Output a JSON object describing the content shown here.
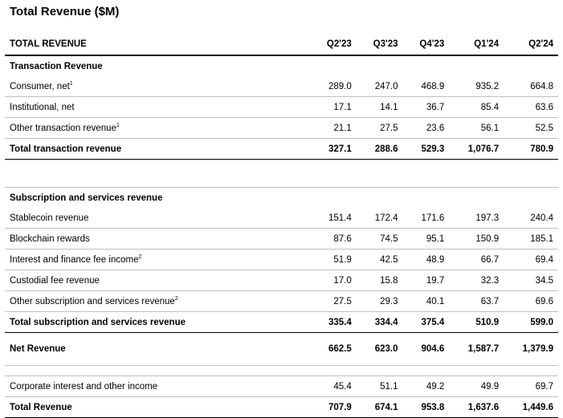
{
  "title": "Total Revenue ($M)",
  "header": {
    "label": "TOTAL REVENUE",
    "periods": [
      "Q2'23",
      "Q3'23",
      "Q4'23",
      "Q1'24",
      "Q2'24"
    ]
  },
  "transaction": {
    "section_label": "Transaction Revenue",
    "rows": [
      {
        "label": "Consumer, net",
        "note": "1",
        "values": [
          "289.0",
          "247.0",
          "468.9",
          "935.2",
          "664.8"
        ]
      },
      {
        "label": "Institutional, net",
        "note": "",
        "values": [
          "17.1",
          "14.1",
          "36.7",
          "85.4",
          "63.6"
        ]
      },
      {
        "label": "Other transaction revenue",
        "note": "1",
        "values": [
          "21.1",
          "27.5",
          "23.6",
          "56.1",
          "52.5"
        ]
      }
    ],
    "total": {
      "label": "Total transaction revenue",
      "values": [
        "327.1",
        "288.6",
        "529.3",
        "1,076.7",
        "780.9"
      ]
    }
  },
  "subscription": {
    "section_label": "Subscription and services revenue",
    "rows": [
      {
        "label": "Stablecoin revenue",
        "note": "",
        "values": [
          "151.4",
          "172.4",
          "171.6",
          "197.3",
          "240.4"
        ]
      },
      {
        "label": "Blockchain rewards",
        "note": "",
        "values": [
          "87.6",
          "74.5",
          "95.1",
          "150.9",
          "185.1"
        ]
      },
      {
        "label": "Interest and finance fee income",
        "note": "2",
        "values": [
          "51.9",
          "42.5",
          "48.9",
          "66.7",
          "69.4"
        ]
      },
      {
        "label": "Custodial fee revenue",
        "note": "",
        "values": [
          "17.0",
          "15.8",
          "19.7",
          "32.3",
          "34.5"
        ]
      },
      {
        "label": "Other subscription and services revenue",
        "note": "2",
        "values": [
          "27.5",
          "29.3",
          "40.1",
          "63.7",
          "69.6"
        ]
      }
    ],
    "total": {
      "label": "Total subscription and services revenue",
      "values": [
        "335.4",
        "334.4",
        "375.4",
        "510.9",
        "599.0"
      ]
    }
  },
  "net_revenue": {
    "label": "Net Revenue",
    "values": [
      "662.5",
      "623.0",
      "904.6",
      "1,587.7",
      "1,379.9"
    ]
  },
  "corporate": {
    "label": "Corporate interest and other income",
    "values": [
      "45.4",
      "51.1",
      "49.2",
      "49.9",
      "69.7"
    ]
  },
  "grand_total": {
    "label": "Total Revenue",
    "values": [
      "707.9",
      "674.1",
      "953.8",
      "1,637.6",
      "1,449.6"
    ]
  }
}
